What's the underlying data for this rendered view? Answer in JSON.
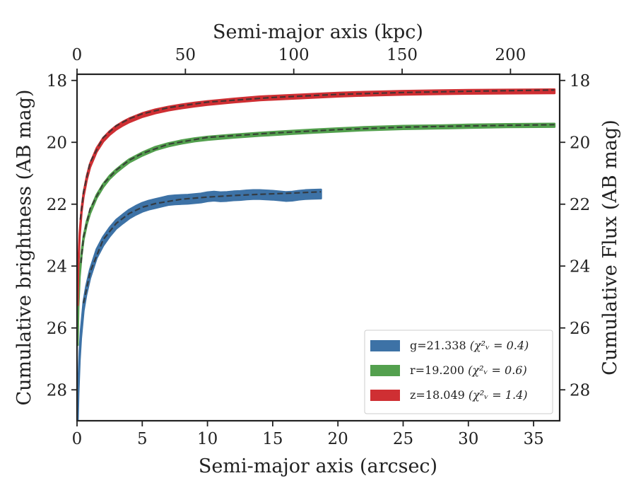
{
  "chart_data": {
    "type": "line",
    "xlabel": "Semi-major axis (arcsec)",
    "ylabel": "Cumulative brightness (AB mag)",
    "top_xlabel": "Semi-major axis (kpc)",
    "right_ylabel": "Cumulative Flux (AB mag)",
    "xlim": [
      0,
      37
    ],
    "ylim": [
      29,
      17.8
    ],
    "top_xlim": [
      0,
      222.7
    ],
    "y_inverted": true,
    "grid": false,
    "legend_position": "lower-right",
    "x_ticks": [
      "0",
      "5",
      "10",
      "15",
      "20",
      "25",
      "30",
      "35"
    ],
    "y_ticks": [
      "18",
      "20",
      "22",
      "24",
      "26",
      "28"
    ],
    "top_x_ticks": [
      "0",
      "50",
      "100",
      "150",
      "200"
    ],
    "right_y_ticks": [
      "18",
      "20",
      "22",
      "24",
      "26",
      "28"
    ],
    "series": [
      {
        "name": "g=21.338 ",
        "legend_math": "(χ²ᵥ = 0.4)",
        "color": "#3d72a6",
        "band_width": 0.28,
        "x": [
          0.05,
          0.1,
          0.2,
          0.3,
          0.5,
          0.7,
          1.0,
          1.5,
          2.0,
          2.5,
          3.0,
          3.5,
          4.0,
          4.5,
          5.0,
          5.5,
          6.0,
          6.5,
          7.0,
          7.5,
          8.0,
          8.5,
          9.0,
          9.5,
          10.0,
          10.5,
          11.0,
          11.5,
          12.0,
          12.5,
          13.0,
          13.5,
          14.0,
          14.5,
          15.0,
          15.5,
          16.0,
          16.5,
          17.0,
          17.5,
          18.0,
          18.7
        ],
        "y": [
          28.9,
          28.0,
          26.9,
          26.2,
          25.3,
          24.8,
          24.25,
          23.6,
          23.2,
          22.9,
          22.65,
          22.48,
          22.32,
          22.2,
          22.1,
          22.03,
          21.98,
          21.93,
          21.88,
          21.86,
          21.85,
          21.84,
          21.82,
          21.8,
          21.76,
          21.74,
          21.76,
          21.75,
          21.73,
          21.72,
          21.7,
          21.69,
          21.69,
          21.7,
          21.71,
          21.73,
          21.75,
          21.74,
          21.71,
          21.69,
          21.68,
          21.67
        ],
        "fit_x": [
          0.5,
          1.0,
          2.0,
          3.0,
          4.0,
          5.0,
          6.0,
          8.0,
          10.0,
          12.0,
          14.0,
          16.0,
          18.7
        ],
        "fit_y": [
          25.2,
          24.2,
          23.15,
          22.62,
          22.3,
          22.1,
          21.98,
          21.84,
          21.77,
          21.72,
          21.68,
          21.65,
          21.6
        ]
      },
      {
        "name": "r=19.200 ",
        "legend_math": "(χ²ᵥ = 0.6)",
        "color": "#53a04e",
        "band_width": 0.1,
        "x": [
          0.05,
          0.1,
          0.2,
          0.35,
          0.5,
          0.75,
          1.0,
          1.5,
          2.0,
          2.5,
          3.0,
          3.5,
          4.0,
          5.0,
          6.0,
          7.0,
          8.0,
          9.0,
          10.0,
          12.0,
          14.0,
          16.0,
          18.0,
          20.0,
          22.0,
          25.0,
          28.0,
          30.0,
          33.0,
          36.6
        ],
        "y": [
          26.5,
          25.3,
          24.3,
          23.6,
          23.1,
          22.6,
          22.25,
          21.75,
          21.4,
          21.13,
          20.93,
          20.76,
          20.6,
          20.38,
          20.2,
          20.08,
          19.99,
          19.92,
          19.87,
          19.8,
          19.74,
          19.69,
          19.64,
          19.6,
          19.56,
          19.52,
          19.5,
          19.48,
          19.46,
          19.45
        ],
        "fit_x": [
          0.3,
          0.5,
          1.0,
          2.0,
          3.0,
          4.0,
          5.0,
          7.0,
          10.0,
          15.0,
          20.0,
          25.0,
          30.0,
          36.6
        ],
        "fit_y": [
          23.9,
          23.05,
          22.15,
          21.35,
          20.9,
          20.58,
          20.36,
          20.06,
          19.84,
          19.7,
          19.59,
          19.51,
          19.47,
          19.43
        ]
      },
      {
        "name": "z=18.049 ",
        "legend_math": "(χ²ᵥ = 1.4)",
        "color": "#cf2f33",
        "band_width": 0.12,
        "x": [
          0.05,
          0.1,
          0.2,
          0.35,
          0.5,
          0.75,
          1.0,
          1.5,
          2.0,
          2.5,
          3.0,
          3.5,
          4.0,
          5.0,
          6.0,
          7.0,
          8.0,
          9.0,
          10.0,
          12.0,
          14.0,
          16.0,
          18.0,
          20.0,
          22.0,
          25.0,
          28.0,
          30.0,
          33.0,
          36.6
        ],
        "y": [
          25.2,
          24.0,
          23.0,
          22.2,
          21.7,
          21.15,
          20.75,
          20.25,
          19.92,
          19.7,
          19.53,
          19.4,
          19.29,
          19.12,
          19.0,
          18.91,
          18.84,
          18.78,
          18.73,
          18.65,
          18.58,
          18.54,
          18.5,
          18.46,
          18.43,
          18.4,
          18.38,
          18.37,
          18.36,
          18.35
        ],
        "fit_x": [
          0.25,
          0.5,
          1.0,
          2.0,
          3.0,
          4.0,
          5.0,
          7.0,
          10.0,
          15.0,
          20.0,
          25.0,
          30.0,
          36.6
        ],
        "fit_y": [
          22.5,
          21.6,
          20.65,
          19.85,
          19.47,
          19.24,
          19.08,
          18.88,
          18.7,
          18.55,
          18.45,
          18.39,
          18.35,
          18.31
        ]
      }
    ]
  }
}
